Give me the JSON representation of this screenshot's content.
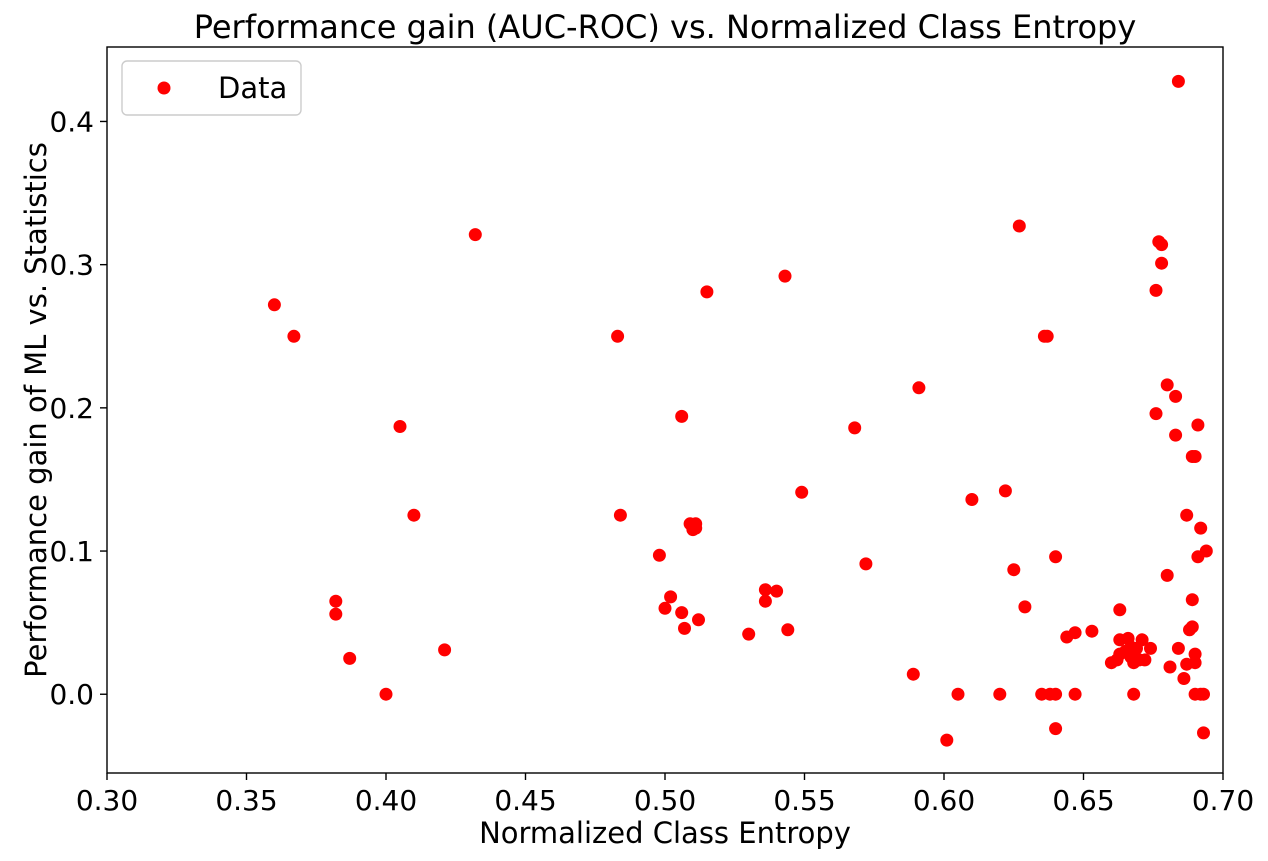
{
  "chart_data": {
    "type": "scatter",
    "title": "Performance gain (AUC-ROC) vs. Normalized Class Entropy",
    "xlabel": "Normalized Class Entropy",
    "ylabel": "Performance gain of ML vs. Statistics",
    "xlim": [
      0.3,
      0.7
    ],
    "ylim": [
      -0.055,
      0.452
    ],
    "xticks": [
      0.3,
      0.35,
      0.4,
      0.45,
      0.5,
      0.55,
      0.6,
      0.65,
      0.7
    ],
    "xtick_labels": [
      "0.30",
      "0.35",
      "0.40",
      "0.45",
      "0.50",
      "0.55",
      "0.60",
      "0.65",
      "0.70"
    ],
    "yticks": [
      0.0,
      0.1,
      0.2,
      0.3,
      0.4
    ],
    "ytick_labels": [
      "0.0",
      "0.1",
      "0.2",
      "0.3",
      "0.4"
    ],
    "grid": false,
    "legend": {
      "position": "top-left",
      "entries": [
        "Data"
      ]
    },
    "colors": {
      "marker": "#ff0000"
    },
    "series": [
      {
        "name": "Data",
        "points": [
          [
            0.36,
            0.272
          ],
          [
            0.367,
            0.25
          ],
          [
            0.382,
            0.065
          ],
          [
            0.382,
            0.056
          ],
          [
            0.387,
            0.025
          ],
          [
            0.4,
            0.0
          ],
          [
            0.405,
            0.187
          ],
          [
            0.41,
            0.125
          ],
          [
            0.421,
            0.031
          ],
          [
            0.432,
            0.321
          ],
          [
            0.483,
            0.25
          ],
          [
            0.484,
            0.125
          ],
          [
            0.498,
            0.097
          ],
          [
            0.5,
            0.06
          ],
          [
            0.502,
            0.068
          ],
          [
            0.506,
            0.194
          ],
          [
            0.506,
            0.057
          ],
          [
            0.507,
            0.046
          ],
          [
            0.509,
            0.119
          ],
          [
            0.51,
            0.115
          ],
          [
            0.511,
            0.116
          ],
          [
            0.511,
            0.119
          ],
          [
            0.512,
            0.052
          ],
          [
            0.515,
            0.281
          ],
          [
            0.53,
            0.042
          ],
          [
            0.536,
            0.073
          ],
          [
            0.536,
            0.065
          ],
          [
            0.54,
            0.072
          ],
          [
            0.543,
            0.292
          ],
          [
            0.544,
            0.045
          ],
          [
            0.549,
            0.141
          ],
          [
            0.568,
            0.186
          ],
          [
            0.572,
            0.091
          ],
          [
            0.589,
            0.014
          ],
          [
            0.591,
            0.214
          ],
          [
            0.601,
            -0.032
          ],
          [
            0.605,
            0.0
          ],
          [
            0.61,
            0.136
          ],
          [
            0.62,
            0.0
          ],
          [
            0.622,
            0.142
          ],
          [
            0.625,
            0.087
          ],
          [
            0.627,
            0.327
          ],
          [
            0.629,
            0.061
          ],
          [
            0.635,
            0.0
          ],
          [
            0.636,
            0.25
          ],
          [
            0.637,
            0.25
          ],
          [
            0.638,
            0.0
          ],
          [
            0.64,
            0.0
          ],
          [
            0.64,
            -0.024
          ],
          [
            0.64,
            0.096
          ],
          [
            0.644,
            0.04
          ],
          [
            0.647,
            0.043
          ],
          [
            0.647,
            0.0
          ],
          [
            0.653,
            0.044
          ],
          [
            0.66,
            0.022
          ],
          [
            0.662,
            0.024
          ],
          [
            0.663,
            0.059
          ],
          [
            0.663,
            0.038
          ],
          [
            0.663,
            0.028
          ],
          [
            0.665,
            0.03
          ],
          [
            0.666,
            0.039
          ],
          [
            0.667,
            0.033
          ],
          [
            0.667,
            0.026
          ],
          [
            0.668,
            0.0
          ],
          [
            0.668,
            0.022
          ],
          [
            0.669,
            0.032
          ],
          [
            0.67,
            0.024
          ],
          [
            0.671,
            0.038
          ],
          [
            0.672,
            0.024
          ],
          [
            0.674,
            0.032
          ],
          [
            0.676,
            0.196
          ],
          [
            0.676,
            0.282
          ],
          [
            0.677,
            0.316
          ],
          [
            0.678,
            0.314
          ],
          [
            0.678,
            0.301
          ],
          [
            0.68,
            0.216
          ],
          [
            0.68,
            0.083
          ],
          [
            0.681,
            0.019
          ],
          [
            0.683,
            0.208
          ],
          [
            0.683,
            0.181
          ],
          [
            0.684,
            0.428
          ],
          [
            0.684,
            0.032
          ],
          [
            0.686,
            0.011
          ],
          [
            0.687,
            0.125
          ],
          [
            0.687,
            0.021
          ],
          [
            0.688,
            0.045
          ],
          [
            0.689,
            0.166
          ],
          [
            0.689,
            0.047
          ],
          [
            0.689,
            0.066
          ],
          [
            0.69,
            0.166
          ],
          [
            0.69,
            0.028
          ],
          [
            0.69,
            0.022
          ],
          [
            0.69,
            0.0
          ],
          [
            0.691,
            0.188
          ],
          [
            0.691,
            0.096
          ],
          [
            0.692,
            0.116
          ],
          [
            0.692,
            0.0
          ],
          [
            0.693,
            -0.027
          ],
          [
            0.693,
            0.0
          ],
          [
            0.694,
            0.1
          ]
        ]
      }
    ]
  }
}
